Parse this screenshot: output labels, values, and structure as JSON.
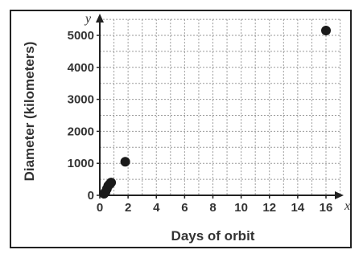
{
  "chart_data": {
    "type": "scatter",
    "xlabel": "Days of orbit",
    "ylabel": "Diameter (kilometers)",
    "x_axis_letter": "x",
    "y_axis_letter": "y",
    "xlim": [
      0,
      16
    ],
    "ylim": [
      0,
      5000
    ],
    "x_ticks": [
      0,
      2,
      4,
      6,
      8,
      10,
      12,
      14,
      16
    ],
    "y_ticks": [
      0,
      1000,
      2000,
      3000,
      4000,
      5000
    ],
    "x_minor_step": 1,
    "y_minor_step": 500,
    "grid": true,
    "legend": "none",
    "point_color": "#1a1a1a",
    "points": [
      {
        "x": 0.3,
        "y": 50
      },
      {
        "x": 0.4,
        "y": 100
      },
      {
        "x": 0.5,
        "y": 200
      },
      {
        "x": 0.6,
        "y": 300
      },
      {
        "x": 0.7,
        "y": 350
      },
      {
        "x": 0.8,
        "y": 400
      },
      {
        "x": 1.8,
        "y": 1050
      },
      {
        "x": 16,
        "y": 5150
      }
    ]
  }
}
